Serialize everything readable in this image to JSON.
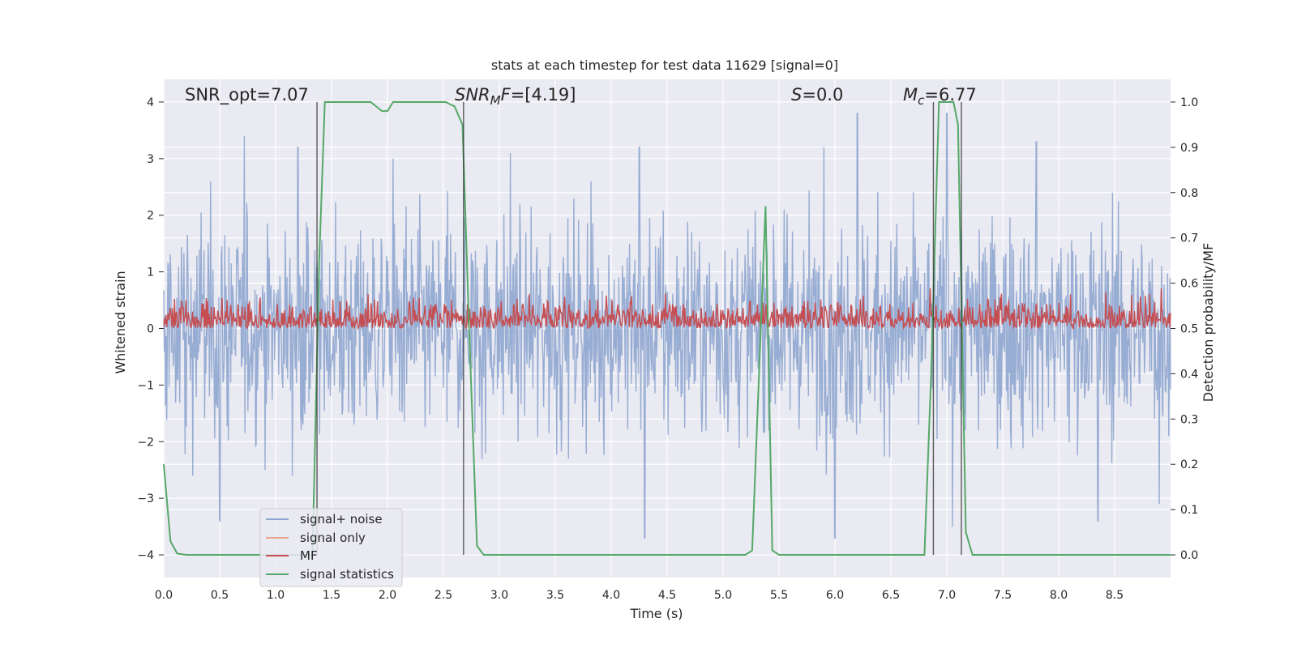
{
  "chart_data": {
    "type": "line",
    "title": "stats at each timestep for test data 11629 [signal=0]",
    "xlabel": "Time (s)",
    "ylabel": "Whitened strain",
    "y2label": "Detection probability/MF",
    "xlim": [
      0.0,
      9.0
    ],
    "ylim": [
      -4.4,
      4.4
    ],
    "y2lim": [
      -0.05,
      1.05
    ],
    "grid": true,
    "legend_position": "lower-left",
    "x_ticks": [
      "0.0",
      "0.5",
      "1.0",
      "1.5",
      "2.0",
      "2.5",
      "3.0",
      "3.5",
      "4.0",
      "4.5",
      "5.0",
      "5.5",
      "6.0",
      "6.5",
      "7.0",
      "7.5",
      "8.0",
      "8.5"
    ],
    "y_ticks": [
      "4",
      "3",
      "2",
      "1",
      "0",
      "−1",
      "−2",
      "−3",
      "−4"
    ],
    "y2_ticks": [
      "1.0",
      "0.9",
      "0.8",
      "0.7",
      "0.6",
      "0.5",
      "0.4",
      "0.3",
      "0.2",
      "0.1",
      "0.0"
    ],
    "annotations": [
      {
        "id": "snr-opt",
        "text": "SNR_opt=7.07"
      },
      {
        "id": "snr-mf",
        "text": "=[4.19]"
      },
      {
        "id": "s-value",
        "text": "=0.0"
      },
      {
        "id": "mc-value",
        "text": "=6.77"
      }
    ],
    "annotation_symbols": {
      "snr_mf": "SNR",
      "snr_mf_sub": "M",
      "snr_mf_tail": "F",
      "s": "S",
      "mc": "M",
      "mc_sub": "c"
    },
    "vertical_lines_x": [
      1.37,
      2.68,
      6.88,
      7.13
    ],
    "series": [
      {
        "name": "signal+ noise",
        "color": "#8fa6cf",
        "axis": "left",
        "envelope": {
          "typical_abs_max": 1.6,
          "peaks": [
            [
              0.72,
              3.4
            ],
            [
              1.2,
              3.2
            ],
            [
              2.05,
              3.0
            ],
            [
              3.1,
              3.1
            ],
            [
              4.25,
              3.2
            ],
            [
              5.9,
              3.2
            ],
            [
              6.2,
              3.8
            ],
            [
              7.0,
              3.8
            ],
            [
              7.8,
              3.3
            ]
          ],
          "troughs": [
            [
              0.5,
              -3.4
            ],
            [
              4.3,
              -3.7
            ],
            [
              6.0,
              -3.7
            ],
            [
              7.05,
              -3.5
            ],
            [
              8.35,
              -3.4
            ],
            [
              8.9,
              -3.1
            ]
          ]
        }
      },
      {
        "name": "signal only",
        "color": "#e8a58c",
        "axis": "left",
        "values": []
      },
      {
        "name": "MF",
        "color": "#c44e52",
        "axis": "right",
        "range": [
          0.5,
          0.6
        ]
      },
      {
        "name": "signal statistics",
        "color": "#55a868",
        "axis": "right",
        "x": [
          0.0,
          0.06,
          0.12,
          0.2,
          1.33,
          1.39,
          1.44,
          1.5,
          1.85,
          1.9,
          1.95,
          2.0,
          2.05,
          2.52,
          2.6,
          2.67,
          2.73,
          2.8,
          2.86,
          2.92,
          5.2,
          5.26,
          5.38,
          5.44,
          5.5,
          6.8,
          6.86,
          6.93,
          6.97,
          7.0,
          7.06,
          7.1,
          7.17,
          7.23,
          7.3,
          9.0
        ],
        "values": [
          0.2,
          0.03,
          0.003,
          0.0,
          0.0,
          0.65,
          1.0,
          1.0,
          1.0,
          0.99,
          0.98,
          0.98,
          1.0,
          1.0,
          0.99,
          0.95,
          0.5,
          0.02,
          0.0,
          0.0,
          0.0,
          0.01,
          0.77,
          0.01,
          0.0,
          0.0,
          0.4,
          1.0,
          1.0,
          1.0,
          1.0,
          0.95,
          0.05,
          0.0,
          0.0,
          0.0
        ]
      }
    ]
  }
}
